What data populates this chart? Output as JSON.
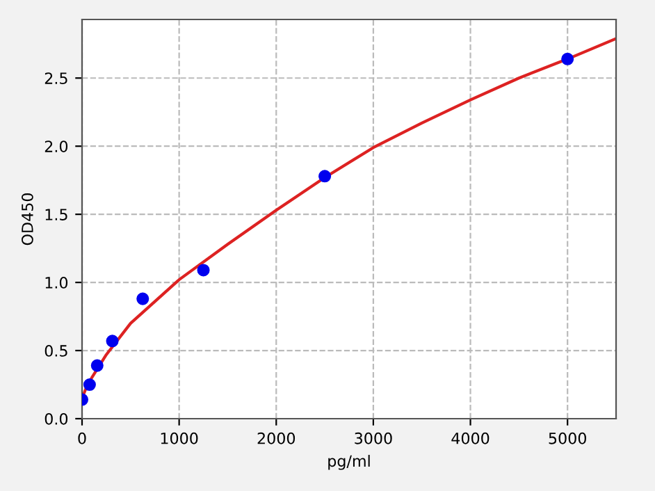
{
  "chart_data": {
    "type": "scatter",
    "xlabel": "pg/ml",
    "ylabel": "OD450",
    "xlim": [
      0,
      5500
    ],
    "ylim": [
      0,
      2.93
    ],
    "xticks": [
      0,
      1000,
      2000,
      3000,
      4000,
      5000
    ],
    "yticks": [
      {
        "value": 0,
        "label": "0.0"
      },
      0.5,
      {
        "value": 1,
        "label": "1.0"
      },
      1.5,
      {
        "value": 2,
        "label": "2.0"
      },
      2.5
    ],
    "grid": true,
    "series": [
      {
        "marker": "circle",
        "color": "#0000ee",
        "x": [
          0,
          78,
          156,
          312,
          625,
          1250,
          2500,
          5000
        ],
        "values": [
          0.14,
          0.25,
          0.39,
          0.57,
          0.88,
          1.09,
          1.78,
          2.64
        ]
      },
      {
        "type": "line",
        "color": "#dd2222",
        "line_style": "solid",
        "x": [
          0,
          50,
          100,
          250,
          500,
          1000,
          1500,
          2000,
          2500,
          3000,
          3500,
          4000,
          4500,
          5000,
          5500
        ],
        "values": [
          0.15,
          0.24,
          0.3,
          0.47,
          0.7,
          1.02,
          1.28,
          1.53,
          1.77,
          1.99,
          2.17,
          2.34,
          2.5,
          2.64,
          2.79
        ]
      }
    ]
  }
}
